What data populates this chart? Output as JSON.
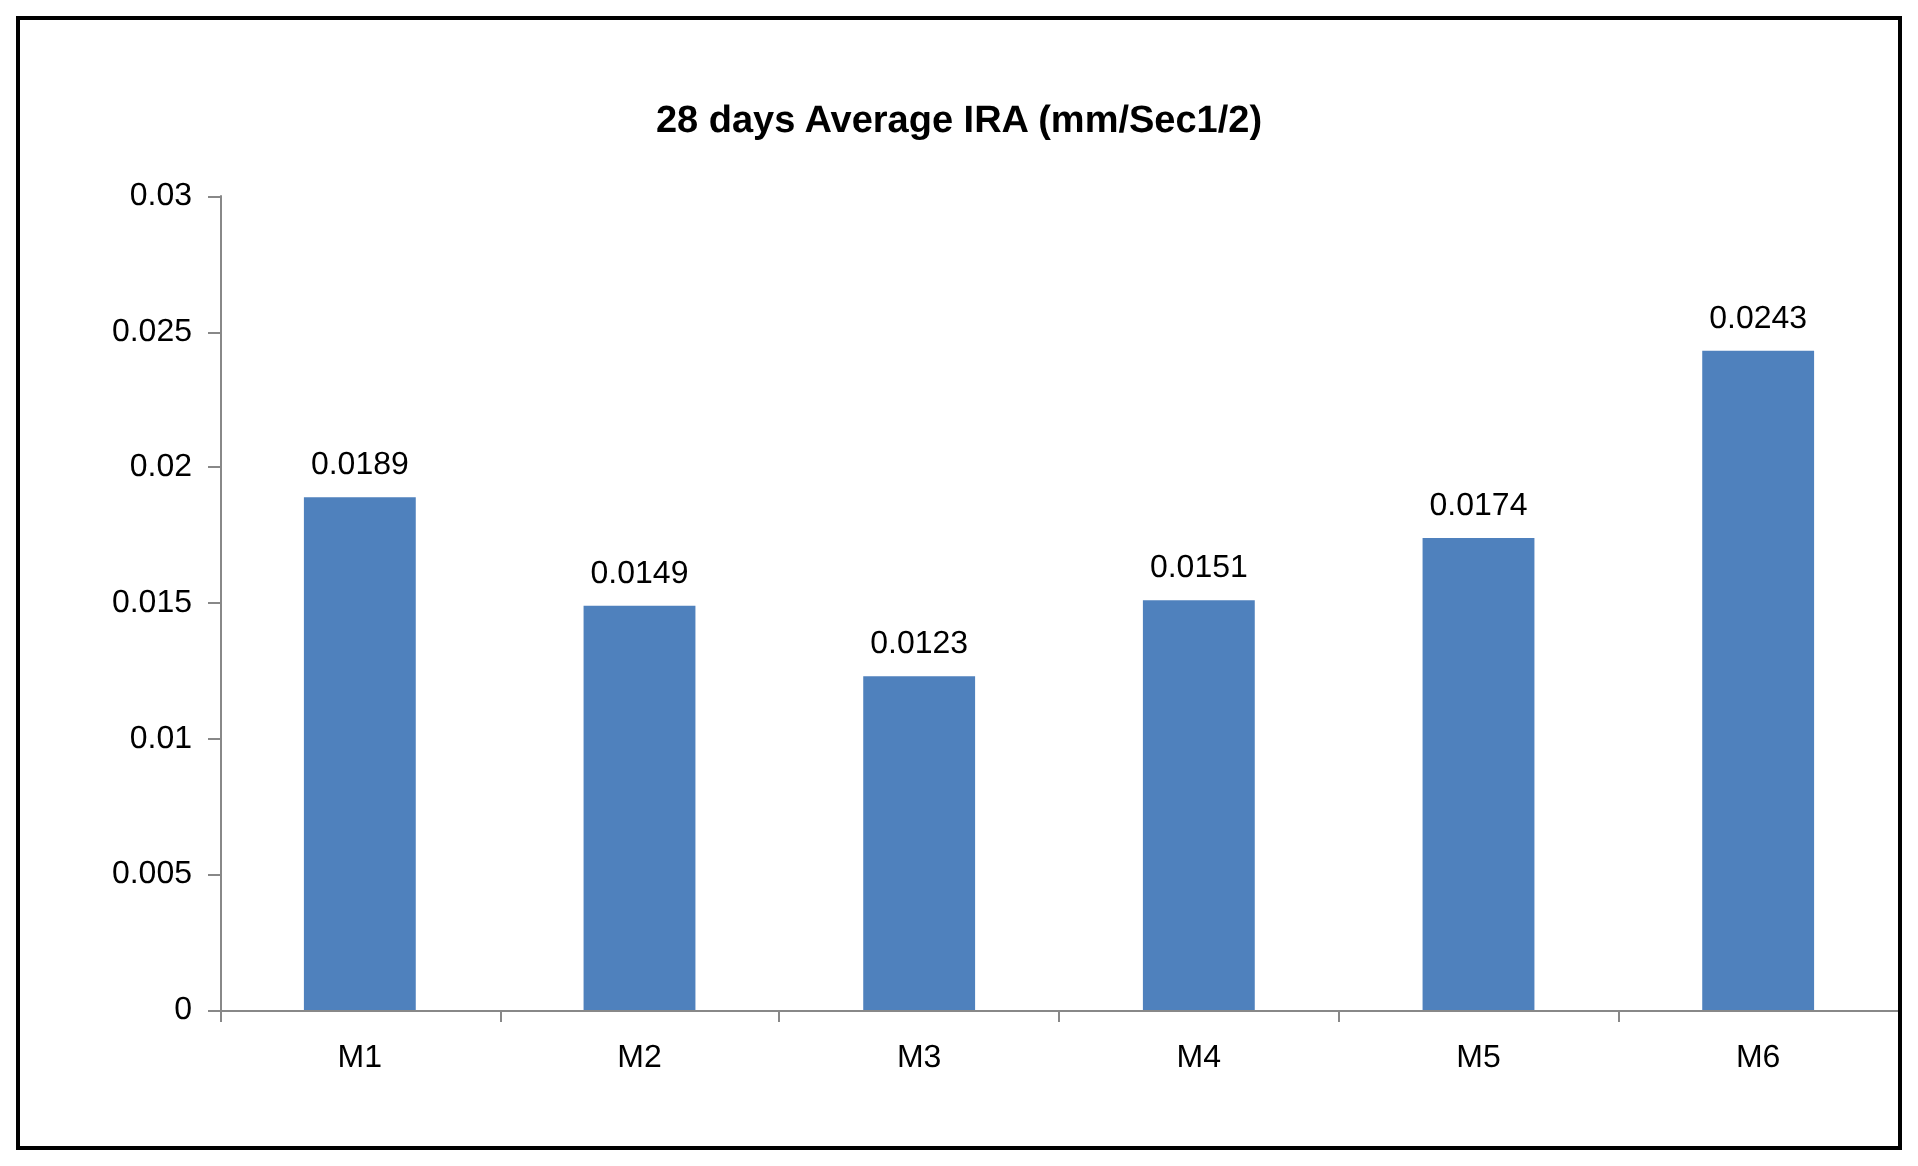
{
  "chart_data": {
    "type": "bar",
    "title": "28 days Average IRA (mm/Sec1/2)",
    "categories": [
      "M1",
      "M2",
      "M3",
      "M4",
      "M5",
      "M6"
    ],
    "values": [
      0.0189,
      0.0149,
      0.0123,
      0.0151,
      0.0174,
      0.0243
    ],
    "color": "#4f81bd",
    "ylim": [
      0,
      0.03
    ],
    "yticks": [
      0,
      0.005,
      0.01,
      0.015,
      0.02,
      0.025,
      0.03
    ],
    "grid": false,
    "data_labels": true
  }
}
